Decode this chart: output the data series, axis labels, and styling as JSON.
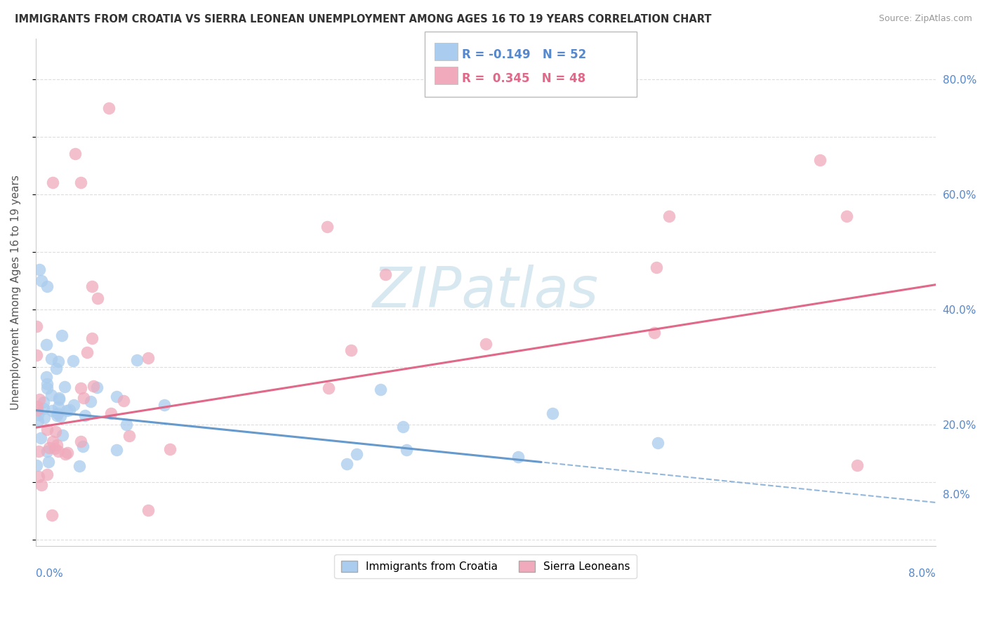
{
  "title": "IMMIGRANTS FROM CROATIA VS SIERRA LEONEAN UNEMPLOYMENT AMONG AGES 16 TO 19 YEARS CORRELATION CHART",
  "source": "Source: ZipAtlas.com",
  "ylabel": "Unemployment Among Ages 16 to 19 years",
  "right_yticks": [
    0.08,
    0.2,
    0.4,
    0.6,
    0.8
  ],
  "right_yticklabels": [
    "8.0%",
    "20.0%",
    "40.0%",
    "60.0%",
    "80.0%"
  ],
  "xlim": [
    0.0,
    0.08
  ],
  "ylim": [
    -0.01,
    0.87
  ],
  "background_color": "#ffffff",
  "grid_color": "#dddddd",
  "series": [
    {
      "label": "Immigrants from Croatia",
      "color": "#aaccee",
      "edge_color": "#aaccee",
      "R": -0.149,
      "N": 52,
      "line_color": "#6699cc",
      "line_dashed_color": "#aaccdd"
    },
    {
      "label": "Sierra Leoneans",
      "color": "#f0aabb",
      "edge_color": "#f0aabb",
      "R": 0.345,
      "N": 48,
      "line_color": "#e06888",
      "line_dashed_color": "#e06888"
    }
  ],
  "legend_R_color_0": "#5588cc",
  "legend_R_color_1": "#e06888",
  "watermark_color": "#d8e8f0",
  "watermark_text": "ZIPatlas"
}
